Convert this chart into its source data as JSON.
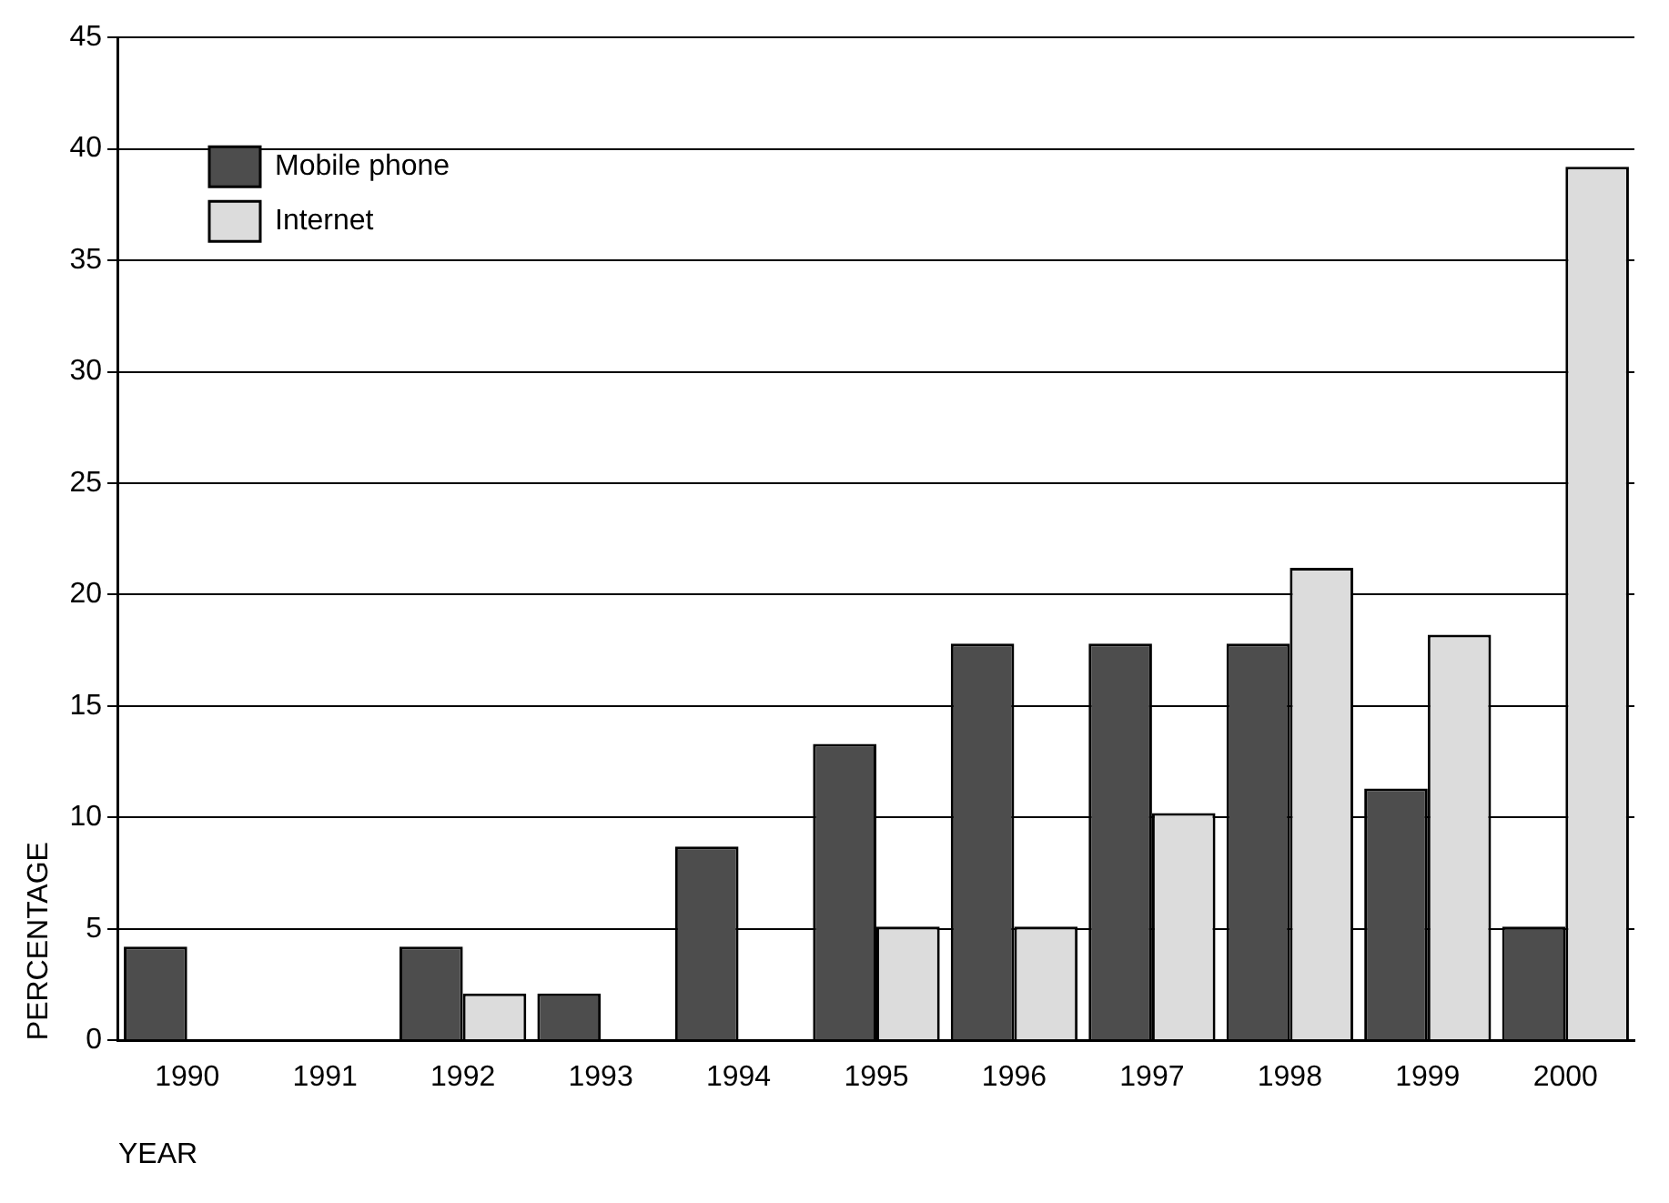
{
  "chart_data": {
    "type": "bar",
    "xlabel": "YEAR",
    "ylabel": "PERCENTAGE",
    "categories": [
      "1990",
      "1991",
      "1992",
      "1993",
      "1994",
      "1995",
      "1996",
      "1997",
      "1998",
      "1999",
      "2000"
    ],
    "series": [
      {
        "name": "Mobile phone",
        "color": "#4d4d4d",
        "values": [
          4.2,
          null,
          4.2,
          2.1,
          8.7,
          13.3,
          17.8,
          17.8,
          17.8,
          11.3,
          5.1
        ]
      },
      {
        "name": "Internet",
        "color": "#dcdcdc",
        "values": [
          null,
          null,
          2.1,
          null,
          null,
          5.1,
          5.1,
          10.2,
          21.2,
          18.2,
          39.2
        ]
      }
    ],
    "ylim": [
      0,
      45
    ],
    "yticks": [
      0,
      5,
      10,
      15,
      20,
      25,
      30,
      35,
      40,
      45
    ],
    "grid": "y",
    "legend": "top left"
  }
}
